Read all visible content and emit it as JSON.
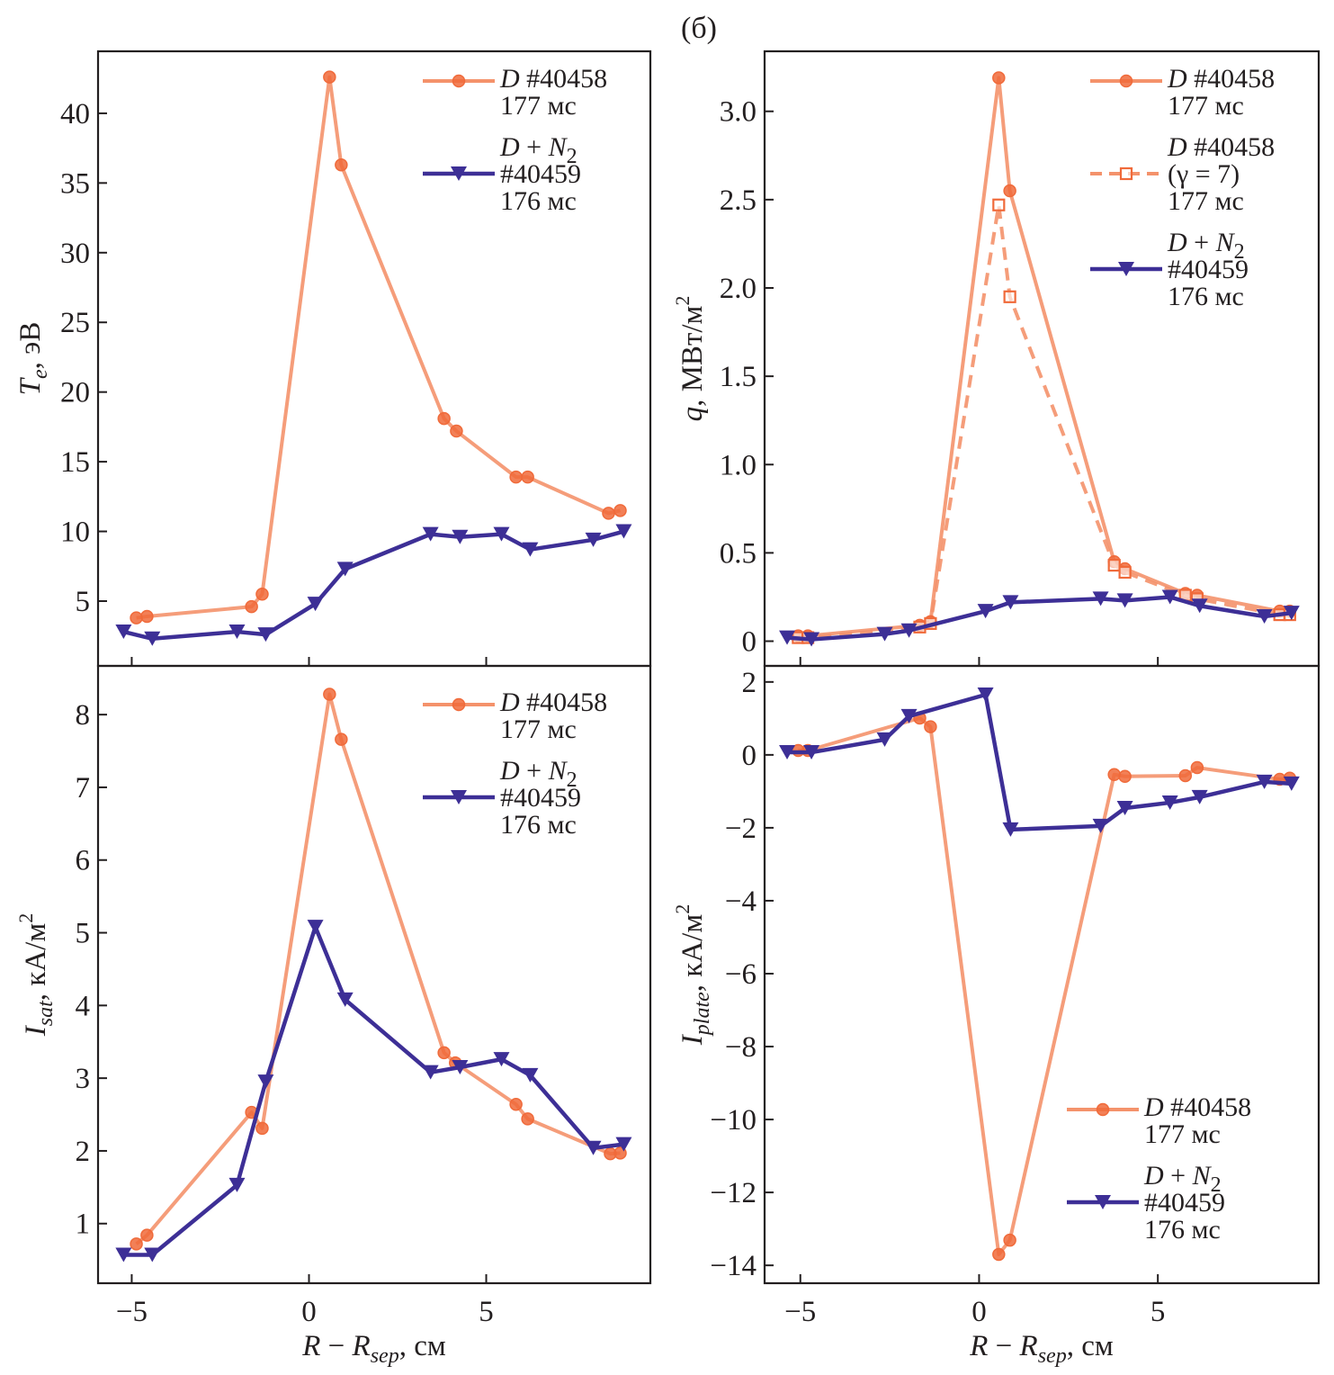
{
  "figure": {
    "panel_tag": "(б)",
    "colors": {
      "d40458_line": "#F4926B",
      "d40458_marker": "#F06A3A",
      "dn2_line": "#3D2F96"
    }
  },
  "chart_data": [
    {
      "id": "te",
      "type": "line",
      "title": "",
      "xlabel": {
        "main": "R − R",
        "sub": "sep",
        "unit": ", см"
      },
      "ylabel": {
        "main": "T",
        "sub": "e",
        "unit": ", эВ"
      },
      "xlim": [
        -5.95,
        9.63
      ],
      "ylim": [
        0.35,
        44.45
      ],
      "xticks": [
        -5,
        0,
        5
      ],
      "xtick_labels": [
        "",
        "",
        ""
      ],
      "yticks": [
        5,
        10,
        15,
        20,
        25,
        30,
        35,
        40
      ],
      "ytick_labels": [
        "5",
        "10",
        "15",
        "20",
        "25",
        "30",
        "35",
        "40"
      ],
      "legend_position": "top-right",
      "legend": [
        {
          "series": 0,
          "lines": [
            [
              "D",
              " #40458"
            ],
            [
              "177 мс"
            ]
          ]
        },
        {
          "series": 1,
          "lines": [
            [
              "D",
              " + ",
              "N",
              "2"
            ],
            [
              "#40459"
            ],
            [
              "176 мс"
            ]
          ]
        }
      ],
      "series": [
        {
          "name": "D #40458 177 мс",
          "marker": "circle",
          "style": "solid",
          "x": [
            -4.87,
            -4.57,
            -1.62,
            -1.32,
            0.58,
            0.91,
            3.81,
            4.16,
            5.84,
            6.17,
            8.45,
            8.78
          ],
          "y": [
            3.8,
            3.9,
            4.6,
            5.5,
            42.6,
            36.3,
            18.1,
            17.2,
            13.9,
            13.9,
            11.3,
            11.5
          ]
        },
        {
          "name": "D + N2 #40459 176 мс",
          "marker": "triangle-down",
          "style": "solid",
          "x": [
            -5.23,
            -4.42,
            -2.03,
            -1.22,
            0.18,
            1.02,
            3.43,
            4.26,
            5.43,
            6.24,
            8.02,
            8.88
          ],
          "y": [
            2.8,
            2.3,
            2.8,
            2.6,
            4.8,
            7.3,
            9.8,
            9.6,
            9.8,
            8.7,
            9.4,
            10.0
          ]
        }
      ]
    },
    {
      "id": "q",
      "type": "line",
      "title": "",
      "xlabel": {
        "main": "R − R",
        "sub": "sep",
        "unit": ", см"
      },
      "ylabel": {
        "main": "q",
        "sub": "",
        "unit": ", МВт/м",
        "sup": "2"
      },
      "xlim": [
        -6.0,
        9.5
      ],
      "ylim": [
        -0.14,
        3.34
      ],
      "xticks": [
        -5,
        0,
        5
      ],
      "xtick_labels": [
        "",
        "",
        ""
      ],
      "yticks": [
        0,
        0.5,
        1.0,
        1.5,
        2.0,
        2.5,
        3.0
      ],
      "ytick_labels": [
        "0",
        "0.5",
        "1.0",
        "1.5",
        "2.0",
        "2.5",
        "3.0"
      ],
      "legend_position": "top-right",
      "legend": [
        {
          "series": 0,
          "lines": [
            [
              "D",
              " #40458"
            ],
            [
              "177 мс"
            ]
          ]
        },
        {
          "series": 1,
          "lines": [
            [
              "D",
              " #40458"
            ],
            [
              "(γ = 7)"
            ],
            [
              "177 мс"
            ]
          ]
        },
        {
          "series": 2,
          "lines": [
            [
              "D",
              " + ",
              "N",
              "2"
            ],
            [
              "#40459"
            ],
            [
              "176 мс"
            ]
          ]
        }
      ],
      "series": [
        {
          "name": "D #40458 177 мс",
          "marker": "circle",
          "style": "solid",
          "x": [
            -5.06,
            -4.79,
            -1.66,
            -1.36,
            0.55,
            0.86,
            3.78,
            4.08,
            5.77,
            6.1,
            8.41,
            8.69
          ],
          "y": [
            0.03,
            0.03,
            0.09,
            0.11,
            3.19,
            2.55,
            0.45,
            0.41,
            0.27,
            0.26,
            0.17,
            0.17
          ]
        },
        {
          "name": "D #40458 (γ = 7) 177 мс",
          "marker": "square-open",
          "style": "dashed",
          "x": [
            -5.06,
            -4.79,
            -1.66,
            -1.36,
            0.55,
            0.86,
            3.78,
            4.08,
            5.77,
            6.1,
            8.41,
            8.69
          ],
          "y": [
            0.02,
            0.02,
            0.08,
            0.1,
            2.47,
            1.95,
            0.43,
            0.39,
            0.26,
            0.24,
            0.15,
            0.15
          ]
        },
        {
          "name": "D + N2 #40459 176 мс",
          "marker": "triangle-down",
          "style": "solid",
          "x": [
            -5.37,
            -4.69,
            -2.64,
            -1.96,
            0.18,
            0.88,
            3.4,
            4.08,
            5.34,
            6.17,
            7.98,
            8.74
          ],
          "y": [
            0.02,
            0.01,
            0.04,
            0.06,
            0.17,
            0.22,
            0.24,
            0.23,
            0.25,
            0.2,
            0.14,
            0.16
          ]
        }
      ]
    },
    {
      "id": "isat",
      "type": "line",
      "title": "",
      "xlabel": {
        "main": "R − R",
        "sub": "sep",
        "unit": ", см"
      },
      "ylabel": {
        "main": "I",
        "sub": "sat",
        "unit": ", кА/м",
        "sup": "2"
      },
      "xlim": [
        -5.95,
        9.63
      ],
      "ylim": [
        0.18,
        8.67
      ],
      "xticks": [
        -5,
        0,
        5
      ],
      "xtick_labels": [
        "−5",
        "0",
        "5"
      ],
      "yticks": [
        1,
        2,
        3,
        4,
        5,
        6,
        7,
        8
      ],
      "ytick_labels": [
        "1",
        "2",
        "3",
        "4",
        "5",
        "6",
        "7",
        "8"
      ],
      "legend_position": "top-right",
      "legend": [
        {
          "series": 0,
          "lines": [
            [
              "D",
              " #40458"
            ],
            [
              "177 мс"
            ]
          ]
        },
        {
          "series": 1,
          "lines": [
            [
              "D",
              " + ",
              "N",
              "2"
            ],
            [
              "#40459"
            ],
            [
              "176 мс"
            ]
          ]
        }
      ],
      "series": [
        {
          "name": "D #40458 177 мс",
          "marker": "circle",
          "style": "solid",
          "x": [
            -4.87,
            -4.57,
            -1.62,
            -1.32,
            0.58,
            0.91,
            3.81,
            4.13,
            5.84,
            6.17,
            8.5,
            8.78
          ],
          "y": [
            0.72,
            0.84,
            2.53,
            2.31,
            8.28,
            7.66,
            3.35,
            3.21,
            2.64,
            2.44,
            1.96,
            1.97
          ]
        },
        {
          "name": "D + N2 #40459 176 мс",
          "marker": "triangle-down",
          "style": "solid",
          "x": [
            -5.23,
            -4.42,
            -2.03,
            -1.22,
            0.18,
            1.02,
            3.43,
            4.26,
            5.43,
            6.24,
            8.02,
            8.88
          ],
          "y": [
            0.57,
            0.57,
            1.53,
            2.95,
            5.08,
            4.08,
            3.08,
            3.15,
            3.26,
            3.04,
            2.04,
            2.09
          ]
        }
      ]
    },
    {
      "id": "iplate",
      "type": "line",
      "title": "",
      "xlabel": {
        "main": "R − R",
        "sub": "sep",
        "unit": ", см"
      },
      "ylabel": {
        "main": "I",
        "sub": "plate",
        "unit": ", кА/м",
        "sup": "2"
      },
      "xlim": [
        -6.0,
        9.5
      ],
      "ylim": [
        -14.49,
        2.44
      ],
      "xticks": [
        -5,
        0,
        5
      ],
      "xtick_labels": [
        "−5",
        "0",
        "5"
      ],
      "yticks": [
        -14,
        -12,
        -10,
        -8,
        -6,
        -4,
        -2,
        0,
        2
      ],
      "ytick_labels": [
        "−14",
        "−12",
        "−10",
        "−8",
        "−6",
        "−4",
        "−2",
        "0",
        "2"
      ],
      "legend_position": "bottom-right",
      "legend": [
        {
          "series": 0,
          "lines": [
            [
              "D",
              " #40458"
            ],
            [
              "177 мс"
            ]
          ]
        },
        {
          "series": 1,
          "lines": [
            [
              "D",
              " + ",
              "N",
              "2"
            ],
            [
              "#40459"
            ],
            [
              "176 мс"
            ]
          ]
        }
      ],
      "series": [
        {
          "name": "D #40458 177 мс",
          "marker": "circle",
          "style": "solid",
          "x": [
            -5.06,
            -4.79,
            -1.66,
            -1.36,
            0.55,
            0.86,
            3.78,
            4.08,
            5.77,
            6.1,
            8.41,
            8.69
          ],
          "y": [
            0.12,
            0.12,
            1.01,
            0.77,
            -13.7,
            -13.31,
            -0.54,
            -0.59,
            -0.57,
            -0.35,
            -0.67,
            -0.64
          ]
        },
        {
          "name": "D + N2 #40459 176 мс",
          "marker": "triangle-down",
          "style": "solid",
          "x": [
            -5.37,
            -4.69,
            -2.64,
            -1.96,
            0.18,
            0.88,
            3.4,
            4.08,
            5.34,
            6.17,
            7.98,
            8.74
          ],
          "y": [
            0.07,
            0.07,
            0.42,
            1.06,
            1.65,
            -2.05,
            -1.95,
            -1.46,
            -1.31,
            -1.16,
            -0.74,
            -0.79
          ]
        }
      ]
    }
  ]
}
